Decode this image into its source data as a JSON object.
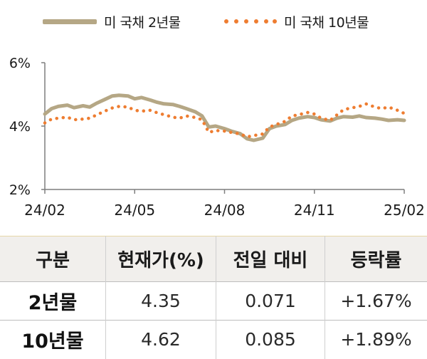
{
  "chart_data": {
    "type": "line",
    "title": "",
    "xlabel": "",
    "ylabel": "",
    "x_ticks": [
      "24/02",
      "24/05",
      "24/08",
      "24/11",
      "25/02"
    ],
    "y_ticks": [
      "6%",
      "4%",
      "2%"
    ],
    "ylim": [
      2,
      6
    ],
    "x_range_months": [
      0,
      12
    ],
    "grid": false,
    "legend_position": "top",
    "series": [
      {
        "name": "미 국채 2년물",
        "style": "solid",
        "color": "#b5a785",
        "points": [
          [
            0.0,
            4.38
          ],
          [
            0.3,
            4.55
          ],
          [
            0.6,
            4.62
          ],
          [
            1.0,
            4.66
          ],
          [
            1.3,
            4.58
          ],
          [
            1.7,
            4.64
          ],
          [
            2.0,
            4.6
          ],
          [
            2.3,
            4.72
          ],
          [
            2.7,
            4.85
          ],
          [
            3.0,
            4.95
          ],
          [
            3.3,
            4.97
          ],
          [
            3.7,
            4.95
          ],
          [
            4.0,
            4.86
          ],
          [
            4.3,
            4.9
          ],
          [
            4.7,
            4.82
          ],
          [
            5.0,
            4.75
          ],
          [
            5.3,
            4.7
          ],
          [
            5.7,
            4.68
          ],
          [
            6.0,
            4.62
          ],
          [
            6.3,
            4.55
          ],
          [
            6.7,
            4.45
          ],
          [
            7.0,
            4.32
          ],
          [
            7.3,
            3.97
          ],
          [
            7.6,
            4.0
          ],
          [
            8.0,
            3.92
          ],
          [
            8.3,
            3.84
          ],
          [
            8.7,
            3.76
          ],
          [
            9.0,
            3.6
          ],
          [
            9.3,
            3.55
          ],
          [
            9.7,
            3.62
          ],
          [
            10.0,
            3.92
          ],
          [
            10.3,
            4.0
          ],
          [
            10.7,
            4.05
          ],
          [
            11.0,
            4.18
          ],
          [
            11.3,
            4.25
          ],
          [
            11.7,
            4.3
          ],
          [
            12.0,
            4.27
          ],
          [
            12.3,
            4.2
          ],
          [
            12.7,
            4.16
          ],
          [
            13.0,
            4.25
          ],
          [
            13.3,
            4.3
          ],
          [
            13.7,
            4.28
          ],
          [
            14.0,
            4.32
          ],
          [
            14.3,
            4.27
          ],
          [
            14.7,
            4.25
          ],
          [
            15.0,
            4.22
          ],
          [
            15.3,
            4.18
          ],
          [
            15.7,
            4.2
          ],
          [
            16.0,
            4.18
          ]
        ]
      },
      {
        "name": "미 국채 10년물",
        "style": "dotted",
        "color": "#ee7d31",
        "points": [
          [
            0.0,
            4.1
          ],
          [
            0.3,
            4.22
          ],
          [
            0.6,
            4.25
          ],
          [
            1.0,
            4.28
          ],
          [
            1.3,
            4.2
          ],
          [
            1.7,
            4.22
          ],
          [
            2.0,
            4.25
          ],
          [
            2.3,
            4.35
          ],
          [
            2.7,
            4.48
          ],
          [
            3.0,
            4.57
          ],
          [
            3.3,
            4.62
          ],
          [
            3.7,
            4.6
          ],
          [
            4.0,
            4.5
          ],
          [
            4.3,
            4.47
          ],
          [
            4.7,
            4.5
          ],
          [
            5.0,
            4.42
          ],
          [
            5.3,
            4.36
          ],
          [
            5.7,
            4.28
          ],
          [
            6.0,
            4.25
          ],
          [
            6.3,
            4.32
          ],
          [
            6.7,
            4.27
          ],
          [
            7.0,
            4.2
          ],
          [
            7.3,
            3.8
          ],
          [
            7.6,
            3.86
          ],
          [
            8.0,
            3.84
          ],
          [
            8.3,
            3.8
          ],
          [
            8.7,
            3.75
          ],
          [
            9.0,
            3.66
          ],
          [
            9.3,
            3.7
          ],
          [
            9.7,
            3.75
          ],
          [
            10.0,
            3.97
          ],
          [
            10.3,
            4.05
          ],
          [
            10.7,
            4.15
          ],
          [
            11.0,
            4.32
          ],
          [
            11.3,
            4.36
          ],
          [
            11.7,
            4.43
          ],
          [
            12.0,
            4.38
          ],
          [
            12.3,
            4.25
          ],
          [
            12.7,
            4.18
          ],
          [
            13.0,
            4.35
          ],
          [
            13.3,
            4.52
          ],
          [
            13.7,
            4.58
          ],
          [
            14.0,
            4.62
          ],
          [
            14.3,
            4.7
          ],
          [
            14.7,
            4.6
          ],
          [
            15.0,
            4.55
          ],
          [
            15.3,
            4.6
          ],
          [
            15.7,
            4.5
          ],
          [
            16.0,
            4.4
          ]
        ]
      }
    ]
  },
  "legend": [
    {
      "label": "미 국채 2년물"
    },
    {
      "label": "미 국채 10년물"
    }
  ],
  "table": {
    "headers": [
      "구분",
      "현재가(%)",
      "전일 대비",
      "등락률"
    ],
    "rows": [
      {
        "label": "2년물",
        "price": "4.35",
        "change": "0.071",
        "rate": "+1.67%"
      },
      {
        "label": "10년물",
        "price": "4.62",
        "change": "0.085",
        "rate": "+1.89%"
      }
    ]
  }
}
